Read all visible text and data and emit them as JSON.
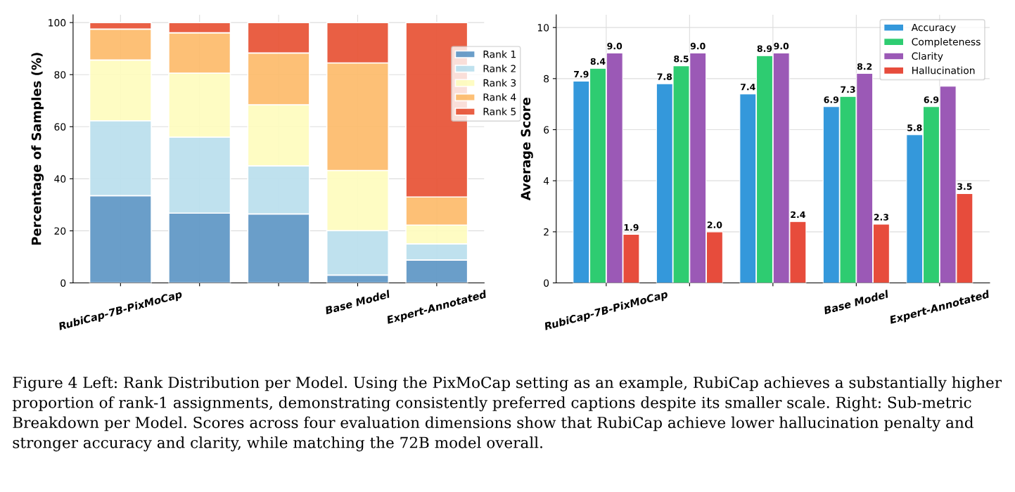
{
  "chart_data": [
    {
      "type": "bar",
      "stacked": true,
      "ylabel": "Percentage of Samples (%)",
      "categories": [
        "RubiCap-7B-PixMoCap",
        null,
        null,
        "Base Model",
        "Expert-Annotated"
      ],
      "ylim": [
        0,
        103
      ],
      "yticks": [
        0,
        20,
        40,
        60,
        80,
        100
      ],
      "grid": true,
      "legend": "top right",
      "series": [
        {
          "name": "Rank 1",
          "color": "#6399c7",
          "values": [
            33.5,
            26.8,
            26.5,
            3.0,
            8.8
          ]
        },
        {
          "name": "Rank 2",
          "color": "#bce0ee",
          "values": [
            28.8,
            29.2,
            18.5,
            17.1,
            6.2
          ]
        },
        {
          "name": "Rank 3",
          "color": "#fefcc0",
          "values": [
            23.3,
            24.6,
            23.4,
            23.1,
            7.2
          ]
        },
        {
          "name": "Rank 4",
          "color": "#fdbd6f",
          "values": [
            11.9,
            15.5,
            19.9,
            41.3,
            10.8
          ]
        },
        {
          "name": "Rank 5",
          "color": "#e8573a",
          "values": [
            2.5,
            3.9,
            11.7,
            15.5,
            67.0
          ]
        }
      ],
      "annotations": [
        "Figure 4 Left: Rank Distribution per Model. Using the PixMoCap setting as an example, RubiCap achieves a substantially higher proportion of rank-1 assignments, demonstrating consistently preferred captions despite its smaller scale. Right: Sub-metric Breakdown per Model. Scores across four evaluation dimensions show that RubiCap achieve lower hallucination penalty and stronger accuracy and clarity, while matching the 72B model overall."
      ]
    },
    {
      "type": "bar",
      "ylabel": "Average Score",
      "categories": [
        "RubiCap-7B-PixMoCap",
        null,
        null,
        "Base Model",
        "Expert-Annotated"
      ],
      "ylim": [
        0,
        10.5
      ],
      "yticks": [
        0,
        2,
        4,
        6,
        8,
        10
      ],
      "grid": true,
      "legend": "top right",
      "series": [
        {
          "name": "Accuracy",
          "color": "#3498db",
          "values": [
            7.9,
            7.8,
            7.4,
            6.9,
            5.8
          ],
          "value_labels": [
            "7.9",
            "7.8",
            "7.4",
            "6.9",
            "5.8"
          ]
        },
        {
          "name": "Completeness",
          "color": "#2ecc71",
          "values": [
            8.4,
            8.5,
            8.9,
            7.3,
            6.9
          ],
          "value_labels": [
            "8.4",
            "8.5",
            "8.9",
            "7.3",
            "6.9"
          ]
        },
        {
          "name": "Clarity",
          "color": "#9b59b6",
          "values": [
            9.0,
            9.0,
            9.0,
            8.2,
            7.7
          ],
          "value_labels": [
            "9.0",
            "9.0",
            "9.0",
            "8.2",
            null
          ]
        },
        {
          "name": "Hallucination",
          "color": "#e74c3c",
          "values": [
            1.9,
            2.0,
            2.4,
            2.3,
            3.5
          ],
          "value_labels": [
            "1.9",
            "2.0",
            "2.4",
            "2.3",
            "3.5"
          ]
        }
      ]
    }
  ]
}
